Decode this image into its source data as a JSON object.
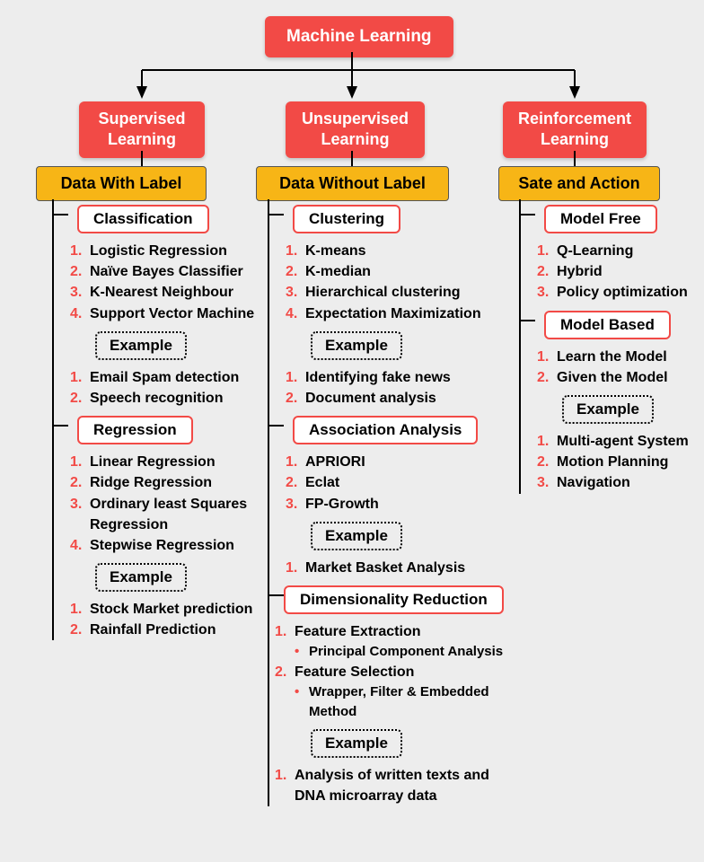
{
  "type": "tree",
  "colors": {
    "red": "#f24a46",
    "yellow": "#f7b516",
    "text": "#000000",
    "background": "#ededed",
    "box_border": "#f24a46",
    "dotted_border": "#000000"
  },
  "typography": {
    "root_fontsize": 19,
    "branch_fontsize": 18,
    "label_fontsize": 18,
    "category_fontsize": 17,
    "item_fontsize": 16
  },
  "root": {
    "label": "Machine Learning"
  },
  "branches": [
    {
      "title": "Supervised\nLearning",
      "label": "Data With Label",
      "sections": [
        {
          "category": "Classification",
          "items": [
            "Logistic Regression",
            "Naïve Bayes Classifier",
            "K-Nearest Neighbour",
            "Support Vector Machine"
          ],
          "example_label": "Example",
          "examples": [
            "Email Spam detection",
            "Speech recognition"
          ]
        },
        {
          "category": "Regression",
          "items": [
            "Linear Regression",
            "Ridge Regression",
            "Ordinary least Squares Regression",
            "Stepwise Regression"
          ],
          "example_label": "Example",
          "examples": [
            "Stock Market prediction",
            "Rainfall Prediction"
          ]
        }
      ]
    },
    {
      "title": "Unsupervised\nLearning",
      "label": "Data Without  Label",
      "sections": [
        {
          "category": "Clustering",
          "items": [
            "K-means",
            "K-median",
            "Hierarchical clustering",
            "Expectation Maximization"
          ],
          "example_label": "Example",
          "examples": [
            "Identifying fake news",
            "Document analysis"
          ]
        },
        {
          "category": "Association Analysis",
          "items": [
            "APRIORI",
            "Eclat",
            "FP-Growth"
          ],
          "example_label": "Example",
          "examples": [
            "Market Basket Analysis"
          ]
        },
        {
          "category": "Dimensionality Reduction",
          "items_nested": [
            {
              "label": "Feature Extraction",
              "sub": "Principal Component Analysis"
            },
            {
              "label": "Feature Selection",
              "sub": "Wrapper, Filter & Embedded Method"
            }
          ],
          "example_label": "Example",
          "examples": [
            "Analysis of written texts and DNA microarray data"
          ]
        }
      ]
    },
    {
      "title": "Reinforcement\nLearning",
      "label": "Sate and Action",
      "sections": [
        {
          "category": "Model Free",
          "items": [
            "Q-Learning",
            "Hybrid",
            "Policy optimization"
          ]
        },
        {
          "category": "Model Based",
          "items": [
            "Learn the Model",
            "Given the Model"
          ],
          "example_label": "Example",
          "examples": [
            "Multi-agent System",
            "Motion Planning",
            "Navigation"
          ]
        }
      ]
    }
  ]
}
